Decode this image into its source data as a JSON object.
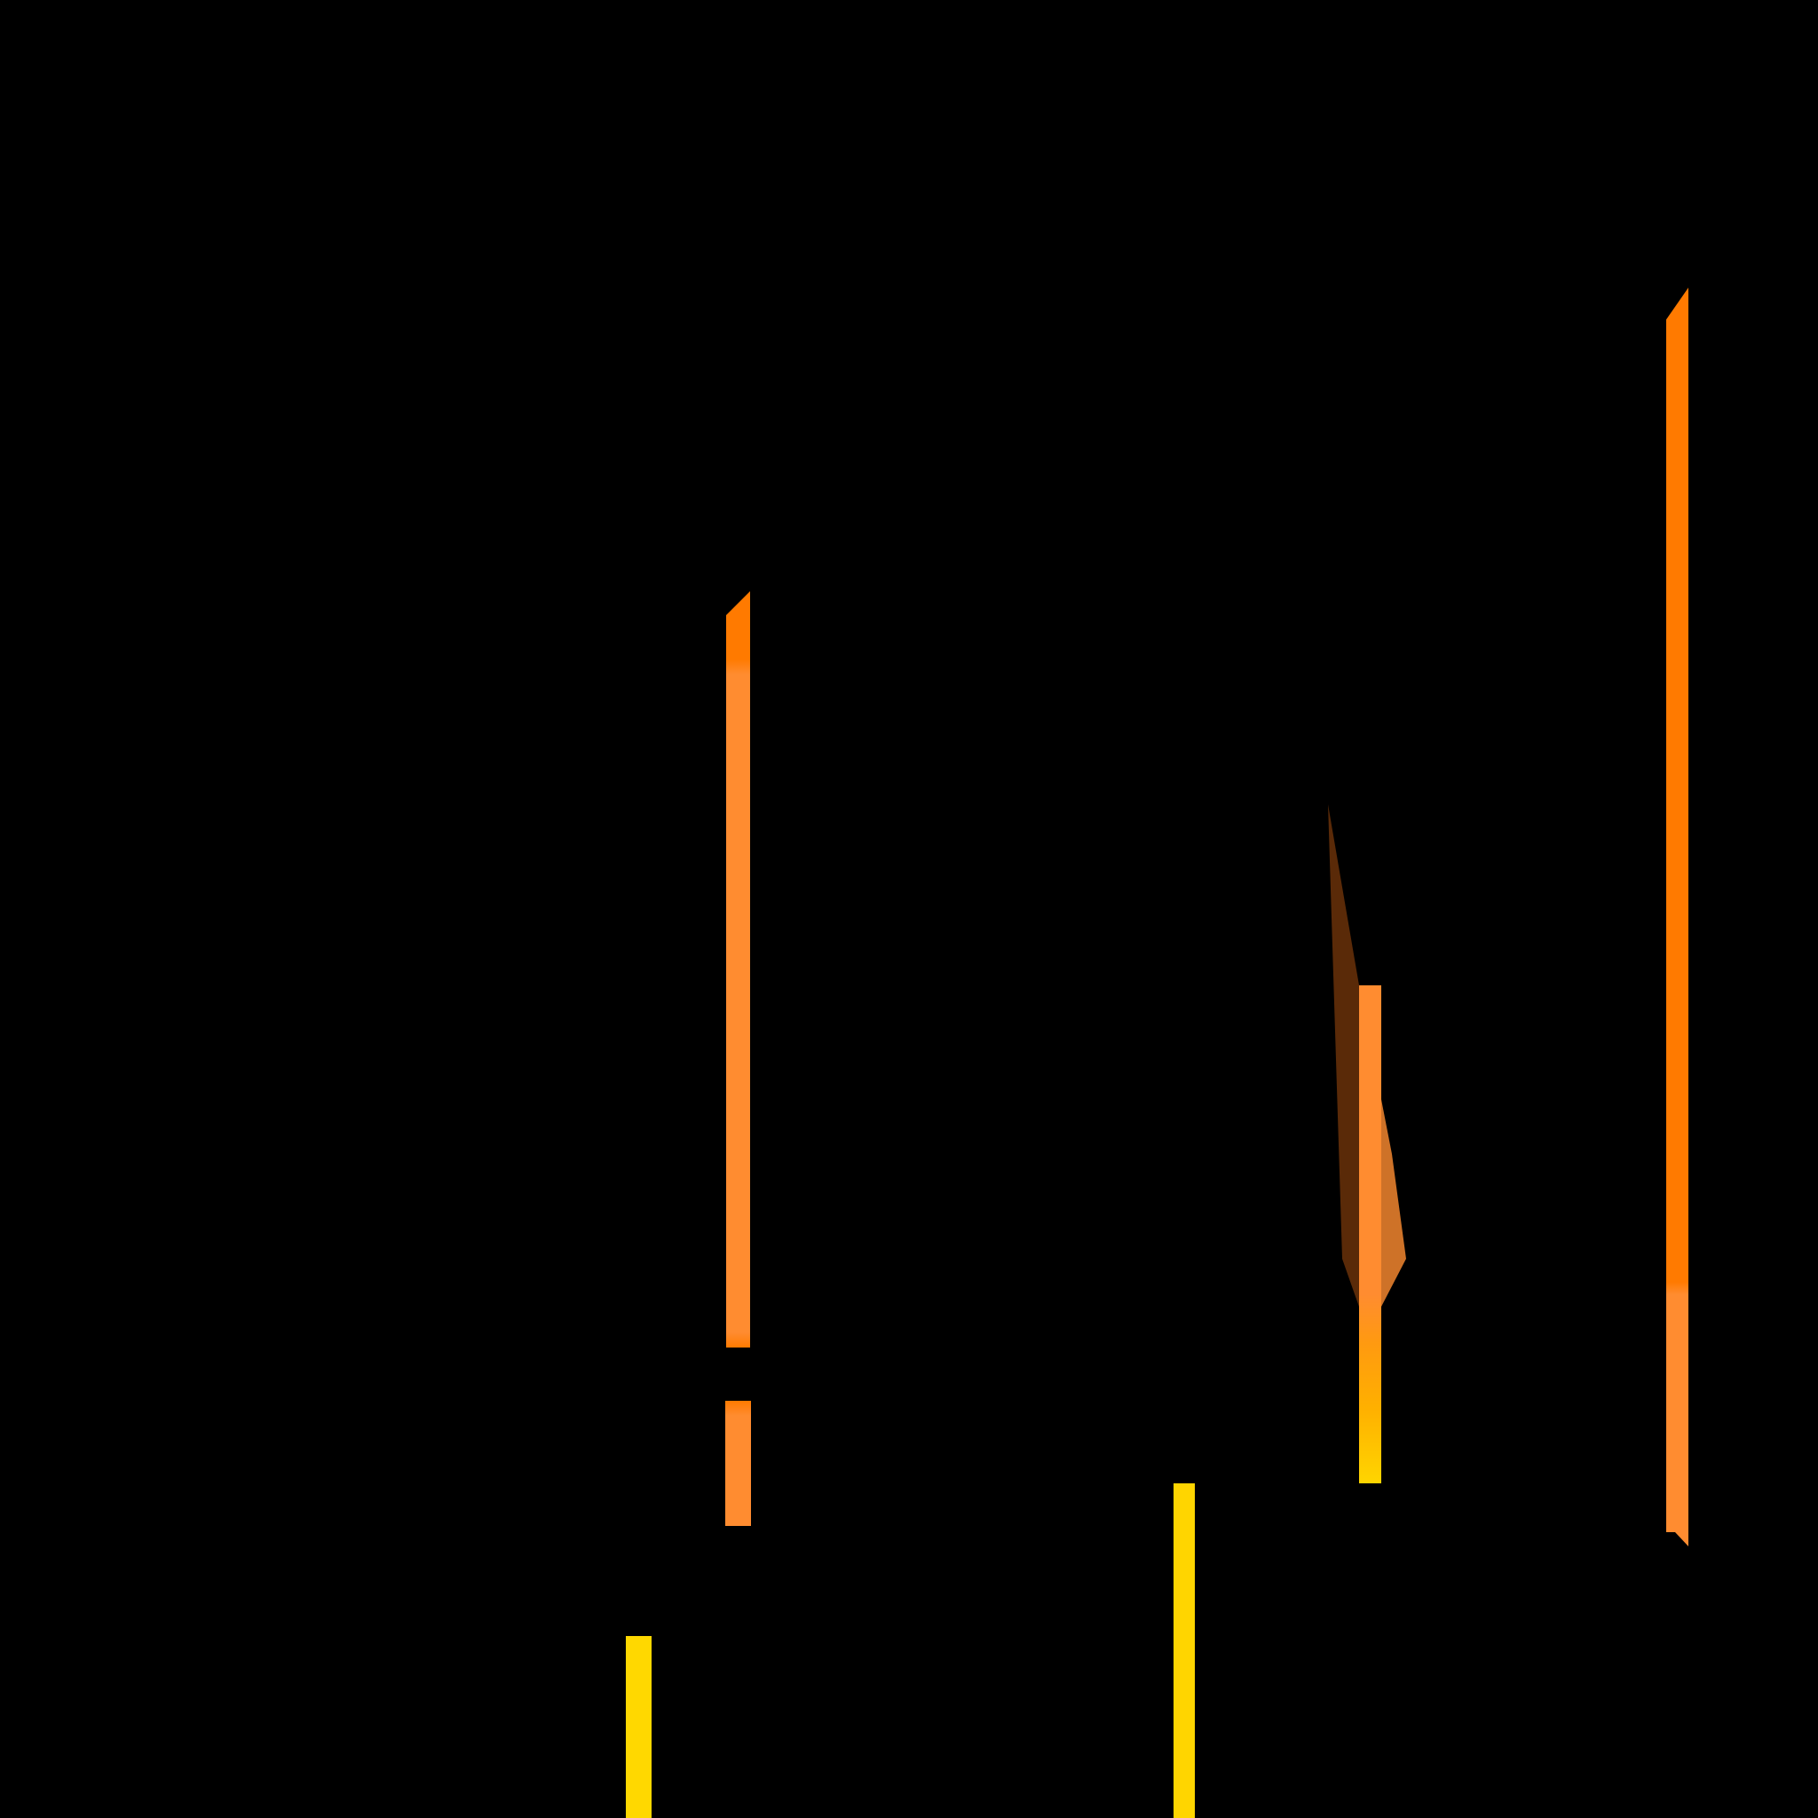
{
  "colors": {
    "background": "#000000",
    "orange_dark": "#FF7A00",
    "orange_light": "#FF8C30",
    "amber": "#FFB000",
    "yellow": "#FFD500",
    "brown": "#5A2A08",
    "brown_light": "#CE7228"
  }
}
